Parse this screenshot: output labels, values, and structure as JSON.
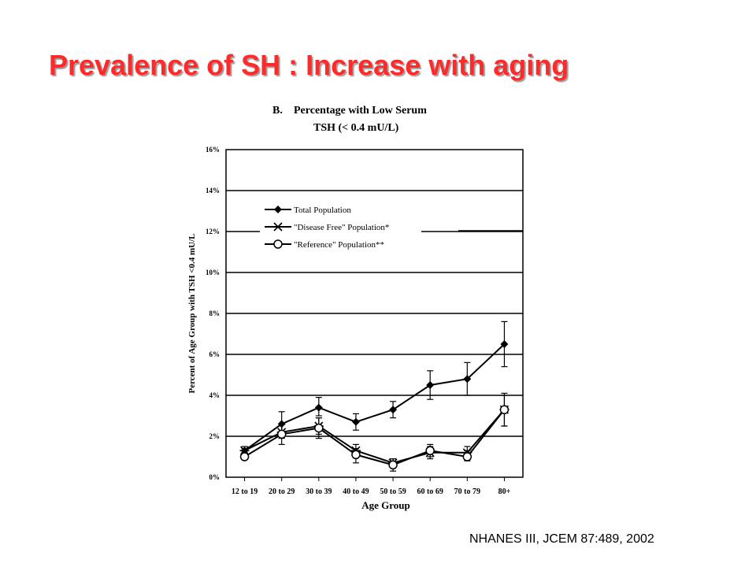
{
  "slide": {
    "title": "Prevalence of SH :  Increase with aging",
    "citation": "NHANES III, JCEM 87:489, 2002"
  },
  "colors": {
    "title": "#ff2a2a",
    "ink": "#000000",
    "background": "#ffffff"
  },
  "chart_data": {
    "type": "line",
    "panel_label": "B.",
    "title": [
      "Percentage with Low Serum",
      "TSH (< 0.4 mU/L)"
    ],
    "xlabel": "Age Group",
    "ylabel": "Percent of Age Group with TSH <0.4 mU/L",
    "categories": [
      "12 to 19",
      "20 to 29",
      "30 to 39",
      "40 to 49",
      "50 to 59",
      "60 to 69",
      "70 to 79",
      "80+"
    ],
    "ylim": [
      0,
      16
    ],
    "yticks": [
      "0%",
      "2%",
      "4%",
      "6%",
      "8%",
      "10%",
      "12%",
      "14%",
      "16%"
    ],
    "grid": "horizontal",
    "legend_position": "upper-left",
    "series": [
      {
        "name": "Total Population",
        "marker": "diamond",
        "values": [
          1.3,
          2.6,
          3.4,
          2.7,
          3.3,
          4.5,
          4.8,
          6.5
        ],
        "err_low": [
          1.2,
          2.2,
          3.0,
          2.3,
          2.9,
          3.8,
          4.0,
          5.4
        ],
        "err_high": [
          1.4,
          3.2,
          3.9,
          3.1,
          3.7,
          5.2,
          5.6,
          7.6
        ]
      },
      {
        "name": "\"Disease Free\" Population*",
        "marker": "asterisk",
        "values": [
          1.3,
          2.2,
          2.5,
          1.3,
          0.7,
          1.2,
          1.2,
          3.3
        ],
        "err_low": [
          1.1,
          1.9,
          2.1,
          1.0,
          0.5,
          0.9,
          0.9,
          2.5
        ],
        "err_high": [
          1.5,
          2.6,
          2.9,
          1.6,
          0.9,
          1.5,
          1.5,
          4.0
        ]
      },
      {
        "name": "\"Reference\" Population**",
        "marker": "circle",
        "values": [
          1.0,
          2.1,
          2.4,
          1.1,
          0.6,
          1.3,
          1.0,
          3.3
        ],
        "err_low": [
          0.9,
          1.6,
          1.9,
          0.7,
          0.3,
          1.0,
          0.8,
          2.5
        ],
        "err_high": [
          1.2,
          2.6,
          2.9,
          1.4,
          0.9,
          1.6,
          1.3,
          4.1
        ]
      }
    ]
  }
}
